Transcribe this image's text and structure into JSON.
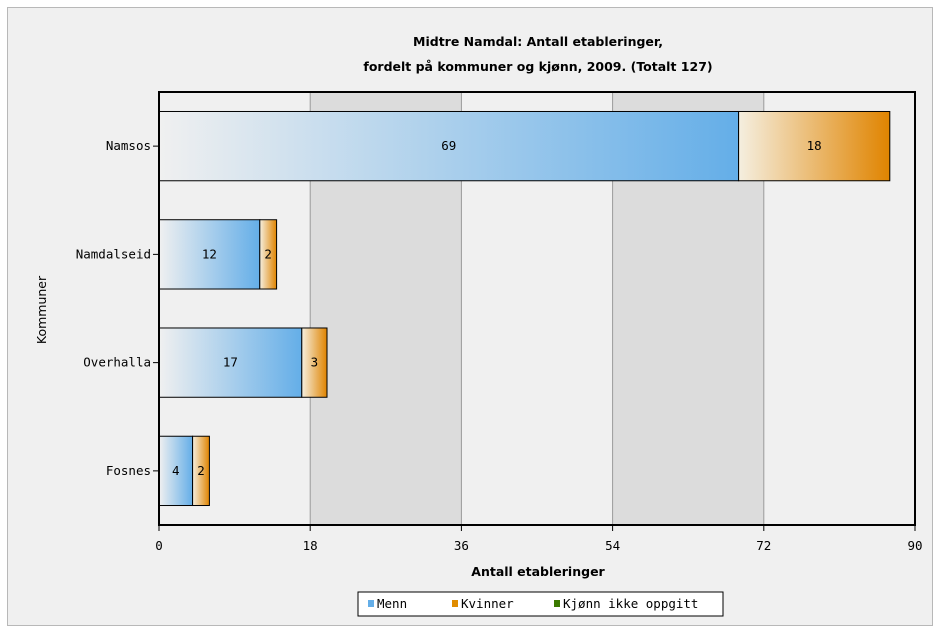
{
  "chart_data": {
    "type": "bar",
    "orientation": "horizontal",
    "stacked": true,
    "title": "Midtre Namdal: Antall etableringer,",
    "subtitle": "fordelt på kommuner og kjønn, 2009. (Totalt 127)",
    "xlabel": "Antall etableringer",
    "ylabel": "Kommuner",
    "xlim": [
      0,
      90
    ],
    "xticks": [
      "0",
      "18",
      "36",
      "54",
      "72",
      "90"
    ],
    "categories": [
      "Namsos",
      "Namdalseid",
      "Overhalla",
      "Fosnes"
    ],
    "series": [
      {
        "name": "Menn",
        "values": [
          69,
          12,
          17,
          4
        ],
        "labels": [
          "69",
          "12",
          "17",
          "4"
        ],
        "color": "#64aee8"
      },
      {
        "name": "Kvinner",
        "values": [
          18,
          2,
          3,
          2
        ],
        "labels": [
          "18",
          "2",
          "3",
          "2"
        ],
        "color": "#e08c00"
      },
      {
        "name": "Kjønn ikke oppgitt",
        "values": [
          0,
          0,
          0,
          0
        ],
        "labels": [
          "",
          "",
          "",
          ""
        ],
        "color": "#3b7a00"
      }
    ],
    "grid": "alternating vertical bands",
    "legend": "bottom"
  }
}
